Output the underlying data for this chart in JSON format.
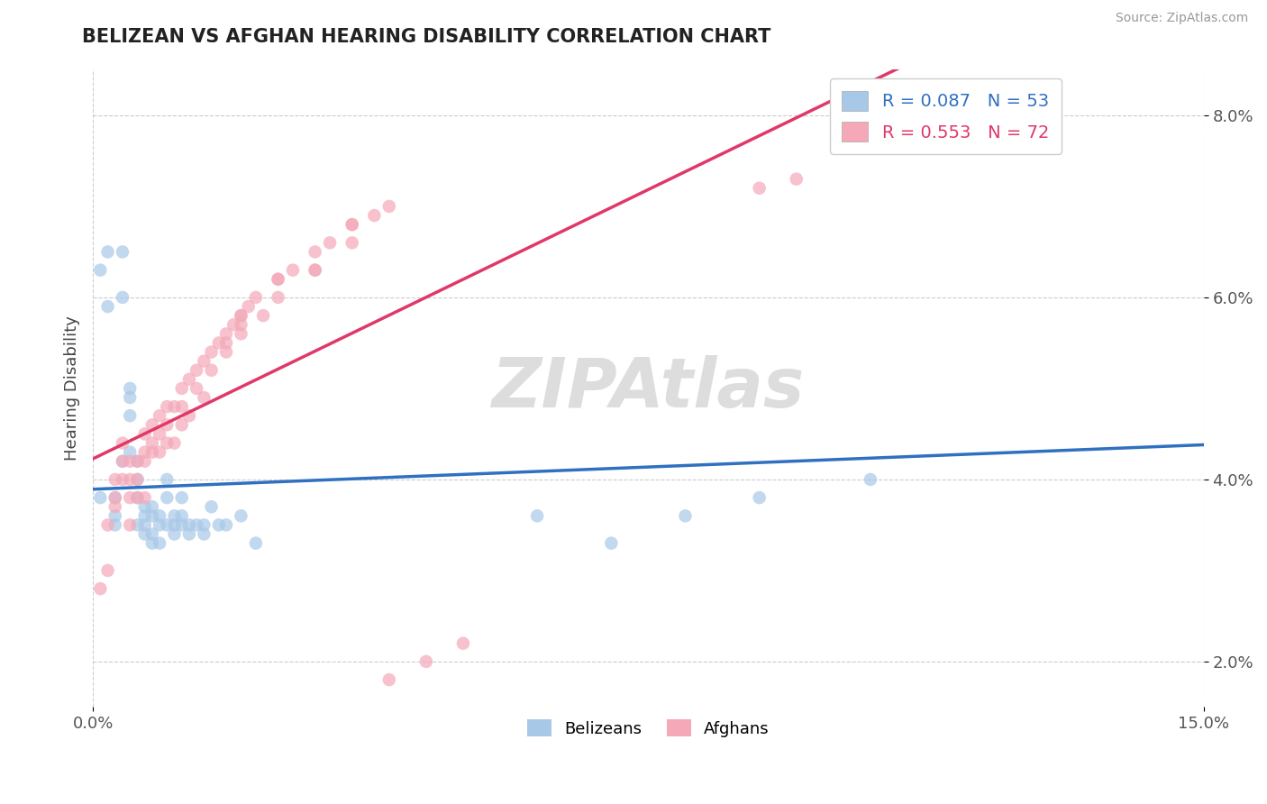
{
  "title": "BELIZEAN VS AFGHAN HEARING DISABILITY CORRELATION CHART",
  "source": "Source: ZipAtlas.com",
  "ylabel": "Hearing Disability",
  "xlim": [
    0.0,
    0.15
  ],
  "ylim": [
    0.015,
    0.085
  ],
  "yticks": [
    0.02,
    0.04,
    0.06,
    0.08
  ],
  "belizean_color": "#a8c8e8",
  "afghan_color": "#f4a8b8",
  "belizean_line_color": "#3070c0",
  "afghan_line_color": "#e03868",
  "belizean_R": 0.087,
  "belizean_N": 53,
  "afghan_R": 0.553,
  "afghan_N": 72,
  "belizean_x": [
    0.001,
    0.002,
    0.003,
    0.003,
    0.004,
    0.004,
    0.005,
    0.005,
    0.005,
    0.006,
    0.006,
    0.006,
    0.007,
    0.007,
    0.007,
    0.008,
    0.008,
    0.008,
    0.009,
    0.009,
    0.01,
    0.01,
    0.011,
    0.011,
    0.012,
    0.012,
    0.013,
    0.013,
    0.014,
    0.015,
    0.015,
    0.016,
    0.017,
    0.018,
    0.02,
    0.022,
    0.001,
    0.002,
    0.003,
    0.004,
    0.005,
    0.006,
    0.007,
    0.008,
    0.009,
    0.01,
    0.011,
    0.012,
    0.06,
    0.07,
    0.08,
    0.09,
    0.105
  ],
  "belizean_y": [
    0.038,
    0.065,
    0.036,
    0.035,
    0.065,
    0.042,
    0.05,
    0.047,
    0.043,
    0.042,
    0.04,
    0.035,
    0.037,
    0.035,
    0.034,
    0.037,
    0.036,
    0.033,
    0.036,
    0.033,
    0.04,
    0.035,
    0.036,
    0.034,
    0.038,
    0.035,
    0.035,
    0.034,
    0.035,
    0.035,
    0.034,
    0.037,
    0.035,
    0.035,
    0.036,
    0.033,
    0.063,
    0.059,
    0.038,
    0.06,
    0.049,
    0.038,
    0.036,
    0.034,
    0.035,
    0.038,
    0.035,
    0.036,
    0.036,
    0.033,
    0.036,
    0.038,
    0.04
  ],
  "afghan_x": [
    0.001,
    0.002,
    0.002,
    0.003,
    0.003,
    0.004,
    0.004,
    0.005,
    0.005,
    0.005,
    0.006,
    0.006,
    0.007,
    0.007,
    0.007,
    0.008,
    0.008,
    0.009,
    0.009,
    0.01,
    0.01,
    0.011,
    0.011,
    0.012,
    0.012,
    0.013,
    0.013,
    0.014,
    0.015,
    0.015,
    0.016,
    0.017,
    0.018,
    0.019,
    0.02,
    0.021,
    0.022,
    0.023,
    0.025,
    0.027,
    0.03,
    0.032,
    0.035,
    0.038,
    0.04,
    0.003,
    0.004,
    0.005,
    0.006,
    0.007,
    0.008,
    0.009,
    0.01,
    0.012,
    0.014,
    0.016,
    0.018,
    0.02,
    0.025,
    0.03,
    0.035,
    0.09,
    0.095,
    0.035,
    0.02,
    0.025,
    0.03,
    0.018,
    0.02,
    0.04,
    0.045,
    0.05
  ],
  "afghan_y": [
    0.028,
    0.035,
    0.03,
    0.04,
    0.037,
    0.044,
    0.04,
    0.042,
    0.038,
    0.035,
    0.042,
    0.038,
    0.045,
    0.042,
    0.038,
    0.046,
    0.043,
    0.047,
    0.043,
    0.048,
    0.044,
    0.048,
    0.044,
    0.05,
    0.046,
    0.051,
    0.047,
    0.052,
    0.053,
    0.049,
    0.054,
    0.055,
    0.056,
    0.057,
    0.058,
    0.059,
    0.06,
    0.058,
    0.062,
    0.063,
    0.065,
    0.066,
    0.068,
    0.069,
    0.07,
    0.038,
    0.042,
    0.04,
    0.04,
    0.043,
    0.044,
    0.045,
    0.046,
    0.048,
    0.05,
    0.052,
    0.054,
    0.056,
    0.06,
    0.063,
    0.066,
    0.072,
    0.073,
    0.068,
    0.058,
    0.062,
    0.063,
    0.055,
    0.057,
    0.018,
    0.02,
    0.022
  ]
}
